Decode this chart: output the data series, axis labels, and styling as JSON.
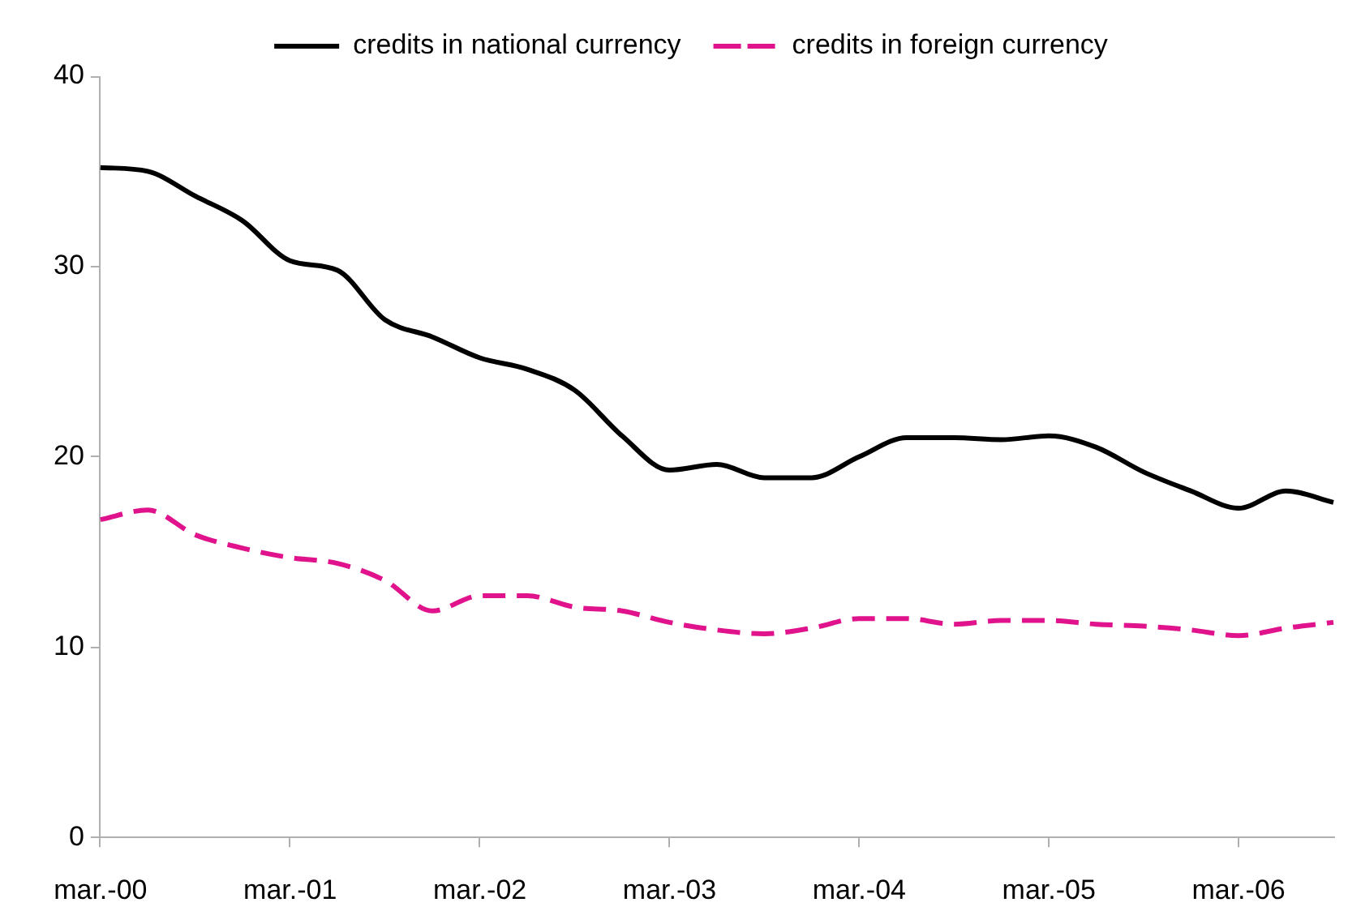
{
  "chart_data": {
    "type": "line",
    "categories": [
      "mar.-00",
      null,
      null,
      null,
      "mar.-01",
      null,
      null,
      null,
      "mar.-02",
      null,
      null,
      null,
      "mar.-03",
      null,
      null,
      null,
      "mar.-04",
      null,
      null,
      null,
      "mar.-05",
      null,
      null,
      null,
      "mar.-06",
      null,
      null
    ],
    "series": [
      {
        "name": "credits in national currency",
        "color": "#000000",
        "line_style": "solid",
        "values": [
          35.2,
          35.0,
          33.7,
          32.4,
          30.3,
          29.8,
          27.2,
          26.3,
          25.2,
          24.6,
          23.5,
          21.1,
          19.3,
          19.6,
          18.9,
          18.9,
          20.0,
          21.0,
          21.0,
          20.9,
          21.1,
          20.5,
          19.2,
          18.2,
          17.3,
          18.2,
          17.6
        ]
      },
      {
        "name": "credits in foreign currency",
        "color": "#e0138c",
        "line_style": "dashed",
        "values": [
          16.7,
          17.2,
          15.9,
          15.2,
          14.7,
          14.4,
          13.5,
          11.9,
          12.7,
          12.7,
          12.1,
          11.9,
          11.3,
          10.9,
          10.7,
          11.0,
          11.5,
          11.5,
          11.2,
          11.4,
          11.4,
          11.2,
          11.1,
          10.9,
          10.6,
          11.0,
          11.3
        ]
      }
    ],
    "ylim": [
      0,
      40
    ],
    "yticks": [
      0,
      10,
      20,
      30,
      40
    ],
    "legend": "top",
    "marker": "none"
  }
}
